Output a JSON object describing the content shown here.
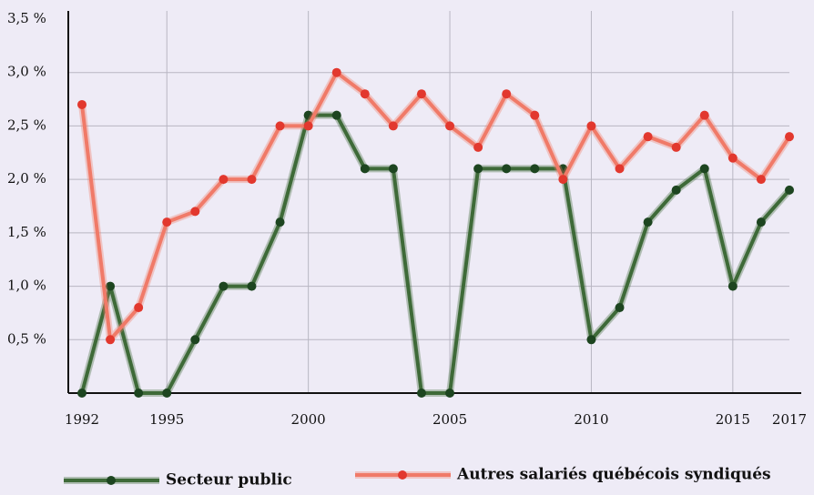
{
  "chart_data": {
    "type": "line",
    "x": [
      1992,
      1993,
      1994,
      1995,
      1996,
      1997,
      1998,
      1999,
      2000,
      2001,
      2002,
      2003,
      2004,
      2005,
      2006,
      2007,
      2008,
      2009,
      2010,
      2011,
      2012,
      2013,
      2014,
      2015,
      2016,
      2017
    ],
    "series": [
      {
        "name": "Secteur public",
        "color": "#3e6a38",
        "marker_color": "#1d4520",
        "values": [
          0,
          1.0,
          0,
          0,
          0.5,
          1.0,
          1.0,
          1.6,
          2.6,
          2.6,
          2.1,
          2.1,
          0,
          0,
          2.1,
          2.1,
          2.1,
          2.1,
          0.5,
          0.8,
          1.6,
          1.9,
          2.1,
          1.0,
          1.6,
          1.9
        ]
      },
      {
        "name": "Autres salariés québécois syndiqués",
        "color": "#f07a68",
        "marker_color": "#e2382e",
        "values": [
          2.7,
          0.5,
          0.8,
          1.6,
          1.7,
          2.0,
          2.0,
          2.5,
          2.5,
          3.0,
          2.8,
          2.5,
          2.8,
          2.5,
          2.3,
          2.8,
          2.6,
          2.0,
          2.5,
          2.1,
          2.4,
          2.3,
          2.6,
          2.2,
          2.0,
          2.4
        ]
      }
    ],
    "xlim": [
      1992,
      2017
    ],
    "xticks": [
      1992,
      1995,
      2000,
      2005,
      2010,
      2015,
      2017
    ],
    "ylim": [
      0,
      3.5
    ],
    "yticks": [
      {
        "value": 0.5,
        "label": "0,5 %"
      },
      {
        "value": 1.0,
        "label": "1,0 %"
      },
      {
        "value": 1.5,
        "label": "1,5 %"
      },
      {
        "value": 2.0,
        "label": "2,0 %"
      },
      {
        "value": 2.5,
        "label": "2,5 %"
      },
      {
        "value": 3.0,
        "label": "3,0 %"
      },
      {
        "value": 3.5,
        "label": "3,5 %"
      }
    ],
    "grid": true,
    "legend": "bottom"
  }
}
